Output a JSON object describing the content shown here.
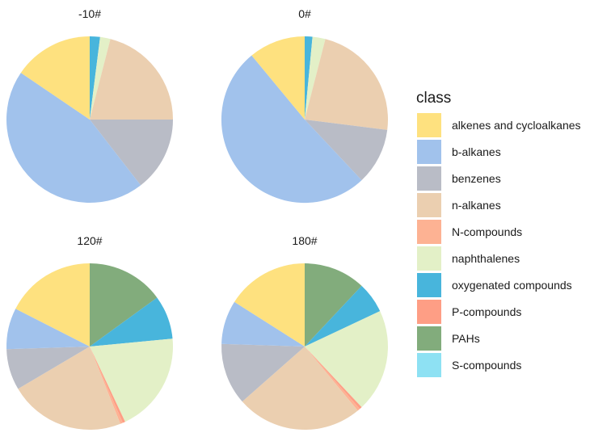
{
  "chart_data": {
    "type": "pie",
    "legend": {
      "title": "class",
      "position": "right",
      "entries": [
        {
          "key": "alkenes",
          "label": "alkenes and cycloalkanes",
          "color": "#FEE17F"
        },
        {
          "key": "balkanes",
          "label": "b-alkanes",
          "color": "#A1C2EC"
        },
        {
          "key": "benzenes",
          "label": "benzenes",
          "color": "#B9BCC6"
        },
        {
          "key": "nalkanes",
          "label": "n-alkanes",
          "color": "#EBCFB0"
        },
        {
          "key": "ncompounds",
          "label": "N-compounds",
          "color": "#FDB293"
        },
        {
          "key": "naphthalenes",
          "label": "naphthalenes",
          "color": "#E3F0C7"
        },
        {
          "key": "oxygenated",
          "label": "oxygenated compounds",
          "color": "#48B5DC"
        },
        {
          "key": "pcompounds",
          "label": "P-compounds",
          "color": "#FE9E85"
        },
        {
          "key": "pahs",
          "label": "PAHs",
          "color": "#82AC7C"
        },
        {
          "key": "scompounds",
          "label": "S-compounds",
          "color": "#8EE1F3"
        }
      ]
    },
    "panels": [
      {
        "title": "-10#",
        "slices": [
          {
            "class": "oxygenated",
            "value": 2.0
          },
          {
            "class": "naphthalenes",
            "value": 2.0
          },
          {
            "class": "nalkanes",
            "value": 21.0
          },
          {
            "class": "benzenes",
            "value": 14.5
          },
          {
            "class": "balkanes",
            "value": 45.0
          },
          {
            "class": "alkenes",
            "value": 15.5
          }
        ]
      },
      {
        "title": "0#",
        "slices": [
          {
            "class": "oxygenated",
            "value": 1.5
          },
          {
            "class": "naphthalenes",
            "value": 2.5
          },
          {
            "class": "nalkanes",
            "value": 23.0
          },
          {
            "class": "benzenes",
            "value": 11.0
          },
          {
            "class": "balkanes",
            "value": 51.0
          },
          {
            "class": "alkenes",
            "value": 11.0
          }
        ]
      },
      {
        "title": "120#",
        "slices": [
          {
            "class": "pahs",
            "value": 15.0
          },
          {
            "class": "oxygenated",
            "value": 8.5
          },
          {
            "class": "naphthalenes",
            "value": 19.5
          },
          {
            "class": "pcompounds",
            "value": 0.5
          },
          {
            "class": "ncompounds",
            "value": 0.5
          },
          {
            "class": "nalkanes",
            "value": 22.5
          },
          {
            "class": "benzenes",
            "value": 8.0
          },
          {
            "class": "balkanes",
            "value": 8.0
          },
          {
            "class": "alkenes",
            "value": 17.5
          }
        ]
      },
      {
        "title": "180#",
        "slices": [
          {
            "class": "pahs",
            "value": 12.0
          },
          {
            "class": "oxygenated",
            "value": 6.0
          },
          {
            "class": "naphthalenes",
            "value": 20.0
          },
          {
            "class": "pcompounds",
            "value": 0.5
          },
          {
            "class": "ncompounds",
            "value": 0.5
          },
          {
            "class": "nalkanes",
            "value": 24.5
          },
          {
            "class": "benzenes",
            "value": 12.0
          },
          {
            "class": "balkanes",
            "value": 8.5
          },
          {
            "class": "alkenes",
            "value": 16.0
          }
        ]
      }
    ]
  }
}
